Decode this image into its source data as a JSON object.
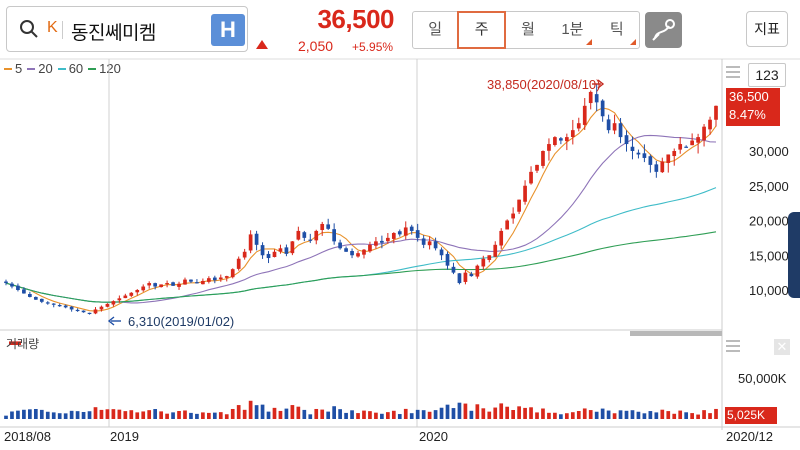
{
  "header": {
    "market_badge": "K",
    "stock_name": "동진쎄미켐",
    "h_badge": "H",
    "price": "36,500",
    "change_amount": "2,050",
    "change_percent": "+5.95%",
    "tabs": [
      {
        "label": "일",
        "active": false,
        "corner": false
      },
      {
        "label": "주",
        "active": true,
        "corner": false
      },
      {
        "label": "월",
        "active": false,
        "corner": false
      },
      {
        "label": "1분",
        "active": false,
        "corner": true
      },
      {
        "label": "틱",
        "active": false,
        "corner": true
      }
    ],
    "indicator_button": "지표"
  },
  "legend": [
    {
      "label": "5",
      "color": "#e8922c"
    },
    {
      "label": "20",
      "color": "#8e74b8"
    },
    {
      "label": "60",
      "color": "#3fbcc8"
    },
    {
      "label": "120",
      "color": "#2f9e55"
    }
  ],
  "num_button": "123",
  "price_box": {
    "price": "36,500",
    "percent": "8.47%"
  },
  "volume_box": "5,025K",
  "volume_title": "거래량",
  "annotations": {
    "high": "38,850(2020/08/10)",
    "low": "6,310(2019/01/02)"
  },
  "colors": {
    "up": "#d9281b",
    "down": "#1f4fa6"
  },
  "chart_data": {
    "type": "candlestick",
    "x_labels": [
      "2018/08",
      "2019",
      "2020",
      "2020/12"
    ],
    "y_ticks": [
      "30,000",
      "25,000",
      "20,000",
      "15,000",
      "10,000"
    ],
    "y_ticks_values": [
      30000,
      25000,
      20000,
      15000,
      10000
    ],
    "volume_tick": "50,000K",
    "volume_tick_value": 50000,
    "ylim": [
      0,
      40000
    ],
    "candles_weekly_close": [
      11000,
      10500,
      10000,
      9500,
      9000,
      8600,
      8300,
      8100,
      7900,
      7700,
      7500,
      7200,
      7000,
      6800,
      6600,
      7200,
      7600,
      8000,
      8400,
      8800,
      9200,
      9600,
      10000,
      10500,
      11000,
      10500,
      10800,
      11000,
      10600,
      10900,
      11500,
      11200,
      11000,
      11300,
      11700,
      11400,
      11800,
      12000,
      13000,
      14500,
      15500,
      18000,
      16500,
      15000,
      14600,
      15500,
      16000,
      15200,
      17000,
      18500,
      17500,
      17200,
      18500,
      19500,
      18800,
      17000,
      16000,
      15500,
      15000,
      15300,
      15800,
      16500,
      17000,
      16800,
      17500,
      18200,
      18000,
      19000,
      18500,
      17500,
      16500,
      17000,
      16000,
      15000,
      13500,
      12500,
      11000,
      12500,
      12000,
      13500,
      14500,
      15000,
      16500,
      18500,
      20000,
      21000,
      23000,
      25000,
      27000,
      28000,
      30000,
      31000,
      32000,
      31500,
      32000,
      33000,
      34000,
      36500,
      38500,
      37000,
      35000,
      33000,
      34000,
      32000,
      31000,
      30000,
      29500,
      29000,
      28000,
      27000,
      28500,
      29500,
      30000,
      31000,
      30500,
      31500,
      32000,
      33500,
      34500,
      36500
    ]
  }
}
